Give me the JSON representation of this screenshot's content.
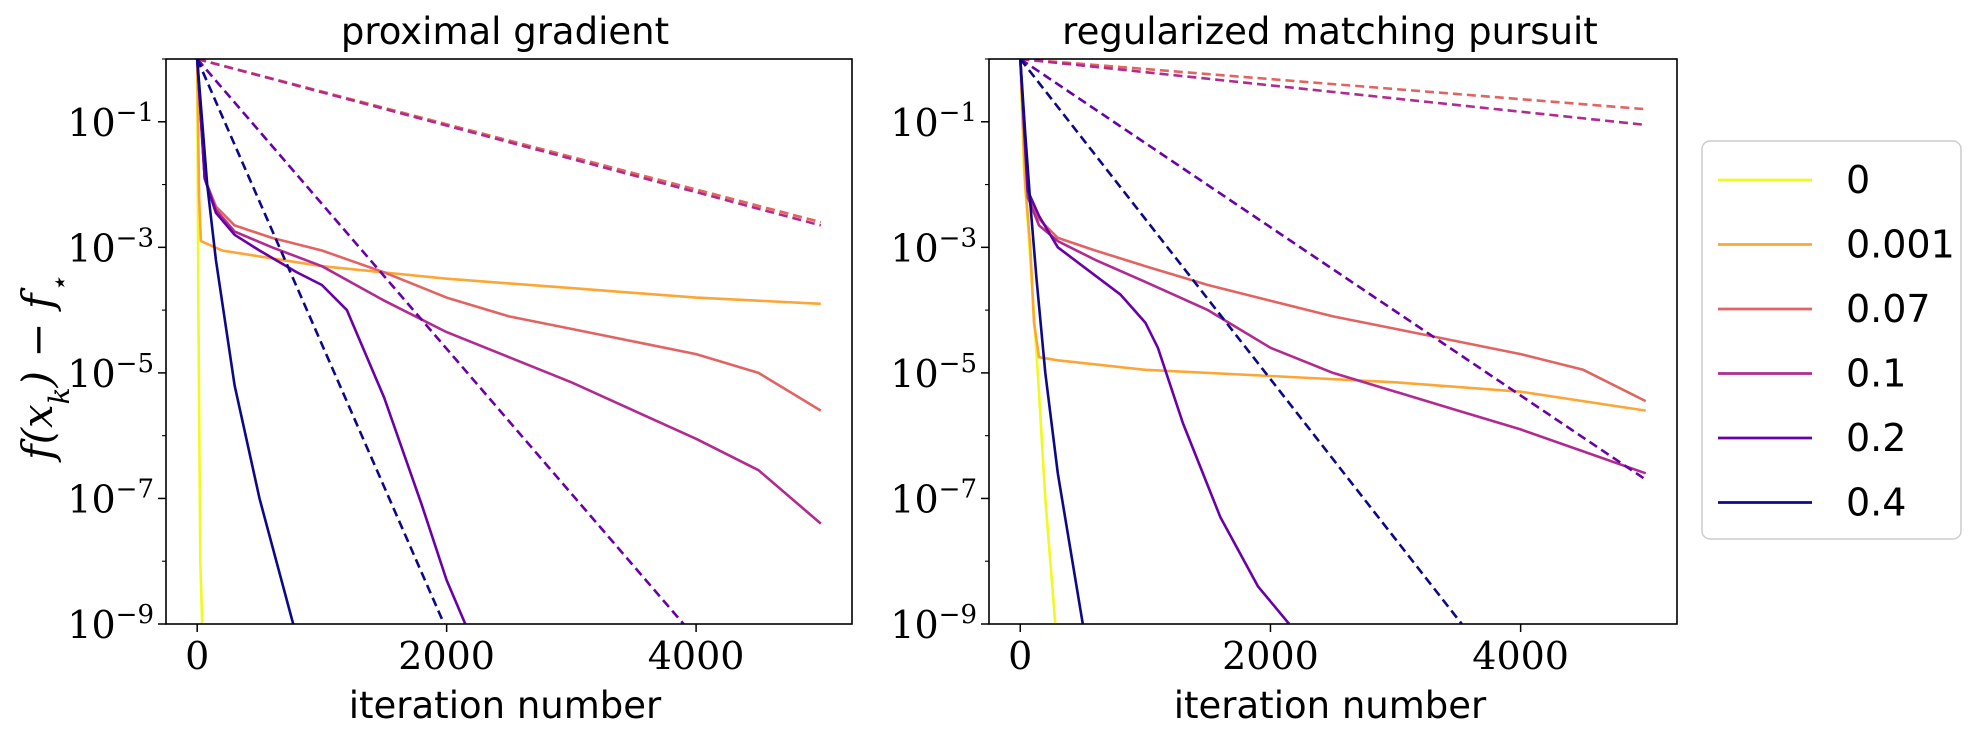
{
  "ylabel": "f(x_k) − f_⋆",
  "ylabel_display": "f(x",
  "ylabel_sub_k": "k",
  "ylabel_mid": ") − f",
  "ylabel_sub_star": "⋆",
  "legend": {
    "placement": "right, outside",
    "entries": [
      {
        "label": "0",
        "color": "#f0f921"
      },
      {
        "label": "0.001",
        "color": "#fca636"
      },
      {
        "label": "0.07",
        "color": "#e16462"
      },
      {
        "label": "0.1",
        "color": "#b12a90"
      },
      {
        "label": "0.2",
        "color": "#6a00a8"
      },
      {
        "label": "0.4",
        "color": "#0d0887"
      }
    ]
  },
  "chart_data": [
    {
      "type": "line",
      "title": "proximal gradient",
      "xlabel": "iteration number",
      "ylabel": "f(x_k) − f_⋆",
      "xlim": [
        -250,
        5250
      ],
      "ylim_log10": [
        -9,
        0
      ],
      "yscale": "log",
      "xticks": [
        0,
        2000,
        4000
      ],
      "yticks_exp": [
        -1,
        -3,
        -5,
        -7,
        -9
      ],
      "grid": false,
      "series": [
        {
          "name": "0",
          "style": "solid",
          "color": "#f0f921",
          "x": [
            0,
            10,
            25,
            40
          ],
          "y_log10": [
            0,
            -4,
            -8,
            -9
          ]
        },
        {
          "name": "0.001",
          "style": "solid",
          "color": "#fca636",
          "x": [
            0,
            15,
            30,
            200,
            1000,
            2000,
            3000,
            4000,
            5000
          ],
          "y_log10": [
            0,
            -2.2,
            -2.9,
            -3.05,
            -3.3,
            -3.5,
            -3.65,
            -3.8,
            -3.9
          ]
        },
        {
          "name": "0.07",
          "style": "solid",
          "color": "#e16462",
          "x": [
            0,
            60,
            150,
            300,
            600,
            1000,
            1500,
            2000,
            2500,
            3000,
            3500,
            4000,
            4500,
            5000
          ],
          "y_log10": [
            0,
            -1.9,
            -2.35,
            -2.65,
            -2.85,
            -3.05,
            -3.4,
            -3.8,
            -4.1,
            -4.3,
            -4.5,
            -4.7,
            -5.0,
            -5.6
          ]
        },
        {
          "name": "0.1",
          "style": "solid",
          "color": "#b12a90",
          "x": [
            0,
            60,
            150,
            300,
            600,
            1000,
            1500,
            2000,
            2500,
            3000,
            3500,
            4000,
            4500,
            5000
          ],
          "y_log10": [
            0,
            -1.9,
            -2.4,
            -2.75,
            -3.0,
            -3.3,
            -3.85,
            -4.35,
            -4.75,
            -5.15,
            -5.6,
            -6.05,
            -6.55,
            -7.4
          ]
        },
        {
          "name": "0.2",
          "style": "solid",
          "color": "#6a00a8",
          "x": [
            0,
            60,
            150,
            300,
            500,
            800,
            1000,
            1200,
            1500,
            1800,
            2000,
            2150
          ],
          "y_log10": [
            0,
            -1.9,
            -2.45,
            -2.8,
            -3.05,
            -3.4,
            -3.6,
            -4.0,
            -5.4,
            -7.1,
            -8.3,
            -9.0
          ]
        },
        {
          "name": "0.4",
          "style": "solid",
          "color": "#0d0887",
          "x": [
            0,
            40,
            80,
            150,
            300,
            500,
            770
          ],
          "y_log10": [
            0,
            -1.0,
            -2.0,
            -3.2,
            -5.2,
            -7.0,
            -9.0
          ]
        },
        {
          "name": "0.001 (dashed)",
          "style": "dashed",
          "color": "#fca636",
          "x": [
            0,
            5000
          ],
          "y_log10": [
            0,
            -2.6
          ]
        },
        {
          "name": "0.07 (dashed)",
          "style": "dashed",
          "color": "#e16462",
          "x": [
            0,
            5000
          ],
          "y_log10": [
            0,
            -2.6
          ]
        },
        {
          "name": "0.1 (dashed)",
          "style": "dashed",
          "color": "#b12a90",
          "x": [
            0,
            5000
          ],
          "y_log10": [
            0,
            -2.65
          ]
        },
        {
          "name": "0.2 (dashed)",
          "style": "dashed",
          "color": "#6a00a8",
          "x": [
            0,
            3900
          ],
          "y_log10": [
            0,
            -9.0
          ]
        },
        {
          "name": "0.4 (dashed)",
          "style": "dashed",
          "color": "#0d0887",
          "x": [
            0,
            1980
          ],
          "y_log10": [
            0,
            -9.0
          ]
        }
      ]
    },
    {
      "type": "line",
      "title": "regularized matching pursuit",
      "xlabel": "iteration number",
      "ylabel": "",
      "xlim": [
        -250,
        5250
      ],
      "ylim_log10": [
        -9,
        0
      ],
      "yscale": "log",
      "xticks": [
        0,
        2000,
        4000
      ],
      "yticks_exp": [
        -1,
        -3,
        -5,
        -7,
        -9
      ],
      "grid": false,
      "series": [
        {
          "name": "0",
          "style": "solid",
          "color": "#f0f921",
          "x": [
            0,
            30,
            60,
            100,
            140,
            200,
            280
          ],
          "y_log10": [
            0,
            -1.8,
            -2.6,
            -3.8,
            -5.0,
            -7.0,
            -9.0
          ]
        },
        {
          "name": "0.001",
          "style": "solid",
          "color": "#fca636",
          "x": [
            0,
            40,
            80,
            110,
            150,
            300,
            1000,
            2000,
            3000,
            4000,
            5000
          ],
          "y_log10": [
            0,
            -2.0,
            -3.0,
            -4.2,
            -4.75,
            -4.8,
            -4.95,
            -5.05,
            -5.15,
            -5.3,
            -5.6
          ]
        },
        {
          "name": "0.07",
          "style": "solid",
          "color": "#e16462",
          "x": [
            0,
            60,
            150,
            300,
            600,
            1000,
            1500,
            2000,
            2500,
            3000,
            3500,
            4000,
            4500,
            5000
          ],
          "y_log10": [
            0,
            -2.1,
            -2.55,
            -2.85,
            -3.05,
            -3.3,
            -3.6,
            -3.85,
            -4.1,
            -4.3,
            -4.5,
            -4.7,
            -4.95,
            -5.45
          ]
        },
        {
          "name": "0.1",
          "style": "solid",
          "color": "#b12a90",
          "x": [
            0,
            60,
            150,
            300,
            600,
            1000,
            1500,
            2000,
            2500,
            3000,
            3500,
            4000,
            4500,
            5000
          ],
          "y_log10": [
            0,
            -2.2,
            -2.65,
            -2.9,
            -3.2,
            -3.55,
            -4.0,
            -4.6,
            -5.0,
            -5.3,
            -5.6,
            -5.9,
            -6.25,
            -6.6
          ]
        },
        {
          "name": "0.2",
          "style": "solid",
          "color": "#6a00a8",
          "x": [
            0,
            60,
            150,
            300,
            500,
            800,
            1000,
            1100,
            1300,
            1600,
            1900,
            2150
          ],
          "y_log10": [
            0,
            -2.1,
            -2.5,
            -3.0,
            -3.3,
            -3.75,
            -4.2,
            -4.6,
            -5.8,
            -7.3,
            -8.4,
            -9.0
          ]
        },
        {
          "name": "0.4",
          "style": "solid",
          "color": "#0d0887",
          "x": [
            0,
            40,
            80,
            130,
            200,
            300,
            500
          ],
          "y_log10": [
            0,
            -1.2,
            -2.3,
            -3.5,
            -5.0,
            -6.6,
            -9.0
          ]
        },
        {
          "name": "0.07 (dashed)",
          "style": "dashed",
          "color": "#e16462",
          "x": [
            0,
            5000
          ],
          "y_log10": [
            0,
            -0.8
          ]
        },
        {
          "name": "0.1 (dashed)",
          "style": "dashed",
          "color": "#b12a90",
          "x": [
            0,
            5000
          ],
          "y_log10": [
            0,
            -1.05
          ]
        },
        {
          "name": "0.2 (dashed)",
          "style": "dashed",
          "color": "#6a00a8",
          "x": [
            0,
            5000
          ],
          "y_log10": [
            0,
            -6.7
          ]
        },
        {
          "name": "0.4 (dashed)",
          "style": "dashed",
          "color": "#0d0887",
          "x": [
            0,
            3530
          ],
          "y_log10": [
            0,
            -9.0
          ]
        }
      ]
    }
  ]
}
